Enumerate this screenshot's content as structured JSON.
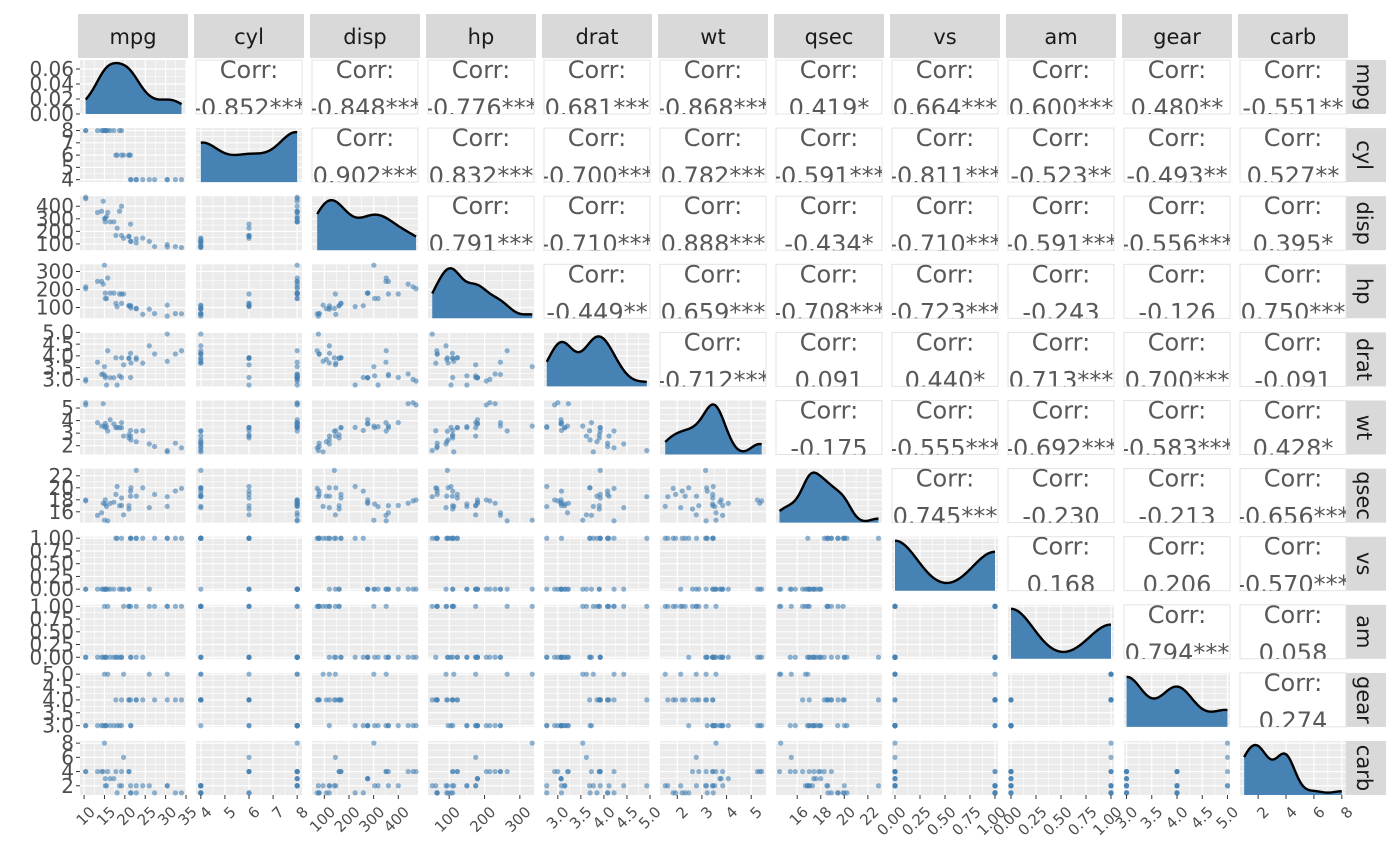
{
  "chart_data": {
    "type": "scatter",
    "variables": [
      "mpg",
      "cyl",
      "disp",
      "hp",
      "drat",
      "wt",
      "qsec",
      "vs",
      "am",
      "gear",
      "carb"
    ],
    "corr_label": "Corr:",
    "correlations": [
      {
        "row": "cyl",
        "col": "mpg",
        "text": "-0.852***"
      },
      {
        "row": "disp",
        "col": "mpg",
        "text": "-0.848***"
      },
      {
        "row": "hp",
        "col": "mpg",
        "text": "-0.776***"
      },
      {
        "row": "drat",
        "col": "mpg",
        "text": "0.681***"
      },
      {
        "row": "wt",
        "col": "mpg",
        "text": "-0.868***"
      },
      {
        "row": "qsec",
        "col": "mpg",
        "text": "0.419*"
      },
      {
        "row": "vs",
        "col": "mpg",
        "text": "0.664***"
      },
      {
        "row": "am",
        "col": "mpg",
        "text": "0.600***"
      },
      {
        "row": "gear",
        "col": "mpg",
        "text": "0.480**"
      },
      {
        "row": "carb",
        "col": "mpg",
        "text": "-0.551**"
      },
      {
        "row": "disp",
        "col": "cyl",
        "text": "0.902***"
      },
      {
        "row": "hp",
        "col": "cyl",
        "text": "0.832***"
      },
      {
        "row": "drat",
        "col": "cyl",
        "text": "-0.700***"
      },
      {
        "row": "wt",
        "col": "cyl",
        "text": "0.782***"
      },
      {
        "row": "qsec",
        "col": "cyl",
        "text": "-0.591***"
      },
      {
        "row": "vs",
        "col": "cyl",
        "text": "-0.811***"
      },
      {
        "row": "am",
        "col": "cyl",
        "text": "-0.523**"
      },
      {
        "row": "gear",
        "col": "cyl",
        "text": "-0.493**"
      },
      {
        "row": "carb",
        "col": "cyl",
        "text": "0.527**"
      },
      {
        "row": "hp",
        "col": "disp",
        "text": "0.791***"
      },
      {
        "row": "drat",
        "col": "disp",
        "text": "-0.710***"
      },
      {
        "row": "wt",
        "col": "disp",
        "text": "0.888***"
      },
      {
        "row": "qsec",
        "col": "disp",
        "text": "-0.434*"
      },
      {
        "row": "vs",
        "col": "disp",
        "text": "-0.710***"
      },
      {
        "row": "am",
        "col": "disp",
        "text": "-0.591***"
      },
      {
        "row": "gear",
        "col": "disp",
        "text": "-0.556***"
      },
      {
        "row": "carb",
        "col": "disp",
        "text": "0.395*"
      },
      {
        "row": "drat",
        "col": "hp",
        "text": "-0.449**"
      },
      {
        "row": "wt",
        "col": "hp",
        "text": "0.659***"
      },
      {
        "row": "qsec",
        "col": "hp",
        "text": "-0.708***"
      },
      {
        "row": "vs",
        "col": "hp",
        "text": "-0.723***"
      },
      {
        "row": "am",
        "col": "hp",
        "text": "-0.243"
      },
      {
        "row": "gear",
        "col": "hp",
        "text": "-0.126"
      },
      {
        "row": "carb",
        "col": "hp",
        "text": "0.750***"
      },
      {
        "row": "wt",
        "col": "drat",
        "text": "-0.712***"
      },
      {
        "row": "qsec",
        "col": "drat",
        "text": "0.091"
      },
      {
        "row": "vs",
        "col": "drat",
        "text": "0.440*"
      },
      {
        "row": "am",
        "col": "drat",
        "text": "0.713***"
      },
      {
        "row": "gear",
        "col": "drat",
        "text": "0.700***"
      },
      {
        "row": "carb",
        "col": "drat",
        "text": "-0.091"
      },
      {
        "row": "qsec",
        "col": "wt",
        "text": "-0.175"
      },
      {
        "row": "vs",
        "col": "wt",
        "text": "-0.555***"
      },
      {
        "row": "am",
        "col": "wt",
        "text": "-0.692***"
      },
      {
        "row": "gear",
        "col": "wt",
        "text": "-0.583***"
      },
      {
        "row": "carb",
        "col": "wt",
        "text": "0.428*"
      },
      {
        "row": "vs",
        "col": "qsec",
        "text": "0.745***"
      },
      {
        "row": "am",
        "col": "qsec",
        "text": "-0.230"
      },
      {
        "row": "gear",
        "col": "qsec",
        "text": "-0.213"
      },
      {
        "row": "carb",
        "col": "qsec",
        "text": "-0.656***"
      },
      {
        "row": "am",
        "col": "vs",
        "text": "0.168"
      },
      {
        "row": "gear",
        "col": "vs",
        "text": "0.206"
      },
      {
        "row": "carb",
        "col": "vs",
        "text": "-0.570***"
      },
      {
        "row": "gear",
        "col": "am",
        "text": "0.794***"
      },
      {
        "row": "carb",
        "col": "am",
        "text": "0.058"
      },
      {
        "row": "carb",
        "col": "gear",
        "text": "0.274"
      }
    ],
    "x_axis": {
      "mpg": {
        "range": [
          9,
          35
        ],
        "ticks": [
          10,
          15,
          20,
          25,
          30,
          35
        ],
        "labels": [
          "10",
          "15",
          "20",
          "25",
          "30",
          "35"
        ]
      },
      "cyl": {
        "range": [
          3.8,
          8.2
        ],
        "ticks": [
          4,
          5,
          6,
          7,
          8
        ],
        "labels": [
          "4",
          "5",
          "6",
          "7",
          "8"
        ]
      },
      "disp": {
        "range": [
          50,
          480
        ],
        "ticks": [
          100,
          200,
          300,
          400
        ],
        "labels": [
          "100",
          "200",
          "300",
          "400"
        ]
      },
      "hp": {
        "range": [
          40,
          340
        ],
        "ticks": [
          100,
          200,
          300
        ],
        "labels": [
          "100",
          "200",
          "300"
        ]
      },
      "drat": {
        "range": [
          2.7,
          5.0
        ],
        "ticks": [
          3.0,
          3.5,
          4.0,
          4.5,
          5.0
        ],
        "labels": [
          "3.0",
          "3.5",
          "4.0",
          "4.5",
          "5.0"
        ]
      },
      "wt": {
        "range": [
          1.3,
          5.6
        ],
        "ticks": [
          2,
          3,
          4,
          5
        ],
        "labels": [
          "2",
          "3",
          "4",
          "5"
        ]
      },
      "qsec": {
        "range": [
          14.2,
          23.2
        ],
        "ticks": [
          16,
          18,
          20,
          22
        ],
        "labels": [
          "16",
          "18",
          "20",
          "22"
        ]
      },
      "vs": {
        "range": [
          -0.03,
          1.03
        ],
        "ticks": [
          0,
          0.25,
          0.5,
          0.75,
          1
        ],
        "labels": [
          "0.00",
          "0.25",
          "0.50",
          "0.75",
          "1.00"
        ]
      },
      "am": {
        "range": [
          -0.03,
          1.03
        ],
        "ticks": [
          0,
          0.25,
          0.5,
          0.75,
          1
        ],
        "labels": [
          "0.00",
          "0.25",
          "0.50",
          "0.75",
          "1.00"
        ]
      },
      "gear": {
        "range": [
          2.95,
          5.05
        ],
        "ticks": [
          3.0,
          3.5,
          4.0,
          4.5,
          5.0
        ],
        "labels": [
          "3.0",
          "3.5",
          "4.0",
          "4.5",
          "5.0"
        ]
      },
      "carb": {
        "range": [
          0.7,
          8.3
        ],
        "ticks": [
          2,
          4,
          6,
          8
        ],
        "labels": [
          "2",
          "4",
          "6",
          "8"
        ]
      }
    },
    "y_axis": {
      "mpg": {
        "range": [
          0,
          0.072
        ],
        "ticks": [
          0,
          0.02,
          0.04,
          0.06
        ],
        "labels": [
          "0.00",
          "0.02",
          "0.04",
          "0.06"
        ]
      },
      "cyl": {
        "range": [
          3.8,
          8.2
        ],
        "ticks": [
          4,
          5,
          6,
          7,
          8
        ],
        "labels": [
          "4",
          "5",
          "6",
          "7",
          "8"
        ]
      },
      "disp": {
        "range": [
          50,
          480
        ],
        "ticks": [
          100,
          200,
          300,
          400
        ],
        "labels": [
          "100",
          "200",
          "300",
          "400"
        ]
      },
      "hp": {
        "range": [
          40,
          340
        ],
        "ticks": [
          100,
          200,
          300
        ],
        "labels": [
          "100",
          "200",
          "300"
        ]
      },
      "drat": {
        "range": [
          2.7,
          5.0
        ],
        "ticks": [
          3.0,
          3.5,
          4.0,
          4.5,
          5.0
        ],
        "labels": [
          "3.0",
          "3.5",
          "4.0",
          "4.5",
          "5.0"
        ]
      },
      "wt": {
        "range": [
          1.3,
          5.6
        ],
        "ticks": [
          2,
          3,
          4,
          5
        ],
        "labels": [
          "2",
          "3",
          "4",
          "5"
        ]
      },
      "qsec": {
        "range": [
          14.2,
          23.2
        ],
        "ticks": [
          16,
          18,
          20,
          22
        ],
        "labels": [
          "16",
          "18",
          "20",
          "22"
        ]
      },
      "vs": {
        "range": [
          -0.03,
          1.03
        ],
        "ticks": [
          0,
          0.25,
          0.5,
          0.75,
          1
        ],
        "labels": [
          "0.00",
          "0.25",
          "0.50",
          "0.75",
          "1.00"
        ]
      },
      "am": {
        "range": [
          -0.03,
          1.03
        ],
        "ticks": [
          0,
          0.25,
          0.5,
          0.75,
          1
        ],
        "labels": [
          "0.00",
          "0.25",
          "0.50",
          "0.75",
          "1.00"
        ]
      },
      "gear": {
        "range": [
          2.95,
          5.05
        ],
        "ticks": [
          3.0,
          3.5,
          4.0,
          4.5,
          5.0
        ],
        "labels": [
          "3.0",
          "3.5",
          "4.0",
          "4.5",
          "5.0"
        ]
      },
      "carb": {
        "range": [
          0.7,
          8.3
        ],
        "ticks": [
          2,
          4,
          6,
          8
        ],
        "labels": [
          "2",
          "4",
          "6",
          "8"
        ]
      }
    },
    "observations": [
      {
        "mpg": 21.0,
        "cyl": 6,
        "disp": 160.0,
        "hp": 110,
        "drat": 3.9,
        "wt": 2.62,
        "qsec": 16.46,
        "vs": 0,
        "am": 1,
        "gear": 4,
        "carb": 4
      },
      {
        "mpg": 21.0,
        "cyl": 6,
        "disp": 160.0,
        "hp": 110,
        "drat": 3.9,
        "wt": 2.875,
        "qsec": 17.02,
        "vs": 0,
        "am": 1,
        "gear": 4,
        "carb": 4
      },
      {
        "mpg": 22.8,
        "cyl": 4,
        "disp": 108.0,
        "hp": 93,
        "drat": 3.85,
        "wt": 2.32,
        "qsec": 18.61,
        "vs": 1,
        "am": 1,
        "gear": 4,
        "carb": 1
      },
      {
        "mpg": 21.4,
        "cyl": 6,
        "disp": 258.0,
        "hp": 110,
        "drat": 3.08,
        "wt": 3.215,
        "qsec": 19.44,
        "vs": 1,
        "am": 0,
        "gear": 3,
        "carb": 1
      },
      {
        "mpg": 18.7,
        "cyl": 8,
        "disp": 360.0,
        "hp": 175,
        "drat": 3.15,
        "wt": 3.44,
        "qsec": 17.02,
        "vs": 0,
        "am": 0,
        "gear": 3,
        "carb": 2
      },
      {
        "mpg": 18.1,
        "cyl": 6,
        "disp": 225.0,
        "hp": 105,
        "drat": 2.76,
        "wt": 3.46,
        "qsec": 20.22,
        "vs": 1,
        "am": 0,
        "gear": 3,
        "carb": 1
      },
      {
        "mpg": 14.3,
        "cyl": 8,
        "disp": 360.0,
        "hp": 245,
        "drat": 3.21,
        "wt": 3.57,
        "qsec": 15.84,
        "vs": 0,
        "am": 0,
        "gear": 3,
        "carb": 4
      },
      {
        "mpg": 24.4,
        "cyl": 4,
        "disp": 146.7,
        "hp": 62,
        "drat": 3.69,
        "wt": 3.19,
        "qsec": 20.0,
        "vs": 1,
        "am": 0,
        "gear": 4,
        "carb": 2
      },
      {
        "mpg": 22.8,
        "cyl": 4,
        "disp": 140.8,
        "hp": 95,
        "drat": 3.92,
        "wt": 3.15,
        "qsec": 22.9,
        "vs": 1,
        "am": 0,
        "gear": 4,
        "carb": 2
      },
      {
        "mpg": 19.2,
        "cyl": 6,
        "disp": 167.6,
        "hp": 123,
        "drat": 3.92,
        "wt": 3.44,
        "qsec": 18.3,
        "vs": 1,
        "am": 0,
        "gear": 4,
        "carb": 4
      },
      {
        "mpg": 17.8,
        "cyl": 6,
        "disp": 167.6,
        "hp": 123,
        "drat": 3.92,
        "wt": 3.44,
        "qsec": 18.9,
        "vs": 1,
        "am": 0,
        "gear": 4,
        "carb": 4
      },
      {
        "mpg": 16.4,
        "cyl": 8,
        "disp": 275.8,
        "hp": 180,
        "drat": 3.07,
        "wt": 4.07,
        "qsec": 17.4,
        "vs": 0,
        "am": 0,
        "gear": 3,
        "carb": 3
      },
      {
        "mpg": 17.3,
        "cyl": 8,
        "disp": 275.8,
        "hp": 180,
        "drat": 3.07,
        "wt": 3.73,
        "qsec": 17.6,
        "vs": 0,
        "am": 0,
        "gear": 3,
        "carb": 3
      },
      {
        "mpg": 15.2,
        "cyl": 8,
        "disp": 275.8,
        "hp": 180,
        "drat": 3.07,
        "wt": 3.78,
        "qsec": 18.0,
        "vs": 0,
        "am": 0,
        "gear": 3,
        "carb": 3
      },
      {
        "mpg": 10.4,
        "cyl": 8,
        "disp": 472.0,
        "hp": 205,
        "drat": 2.93,
        "wt": 5.25,
        "qsec": 17.98,
        "vs": 0,
        "am": 0,
        "gear": 3,
        "carb": 4
      },
      {
        "mpg": 10.4,
        "cyl": 8,
        "disp": 460.0,
        "hp": 215,
        "drat": 3.0,
        "wt": 5.424,
        "qsec": 17.82,
        "vs": 0,
        "am": 0,
        "gear": 3,
        "carb": 4
      },
      {
        "mpg": 14.7,
        "cyl": 8,
        "disp": 440.0,
        "hp": 230,
        "drat": 3.23,
        "wt": 5.345,
        "qsec": 17.42,
        "vs": 0,
        "am": 0,
        "gear": 3,
        "carb": 4
      },
      {
        "mpg": 32.4,
        "cyl": 4,
        "disp": 78.7,
        "hp": 66,
        "drat": 4.08,
        "wt": 2.2,
        "qsec": 19.47,
        "vs": 1,
        "am": 1,
        "gear": 4,
        "carb": 1
      },
      {
        "mpg": 30.4,
        "cyl": 4,
        "disp": 75.7,
        "hp": 52,
        "drat": 4.93,
        "wt": 1.615,
        "qsec": 18.52,
        "vs": 1,
        "am": 1,
        "gear": 4,
        "carb": 2
      },
      {
        "mpg": 33.9,
        "cyl": 4,
        "disp": 71.1,
        "hp": 65,
        "drat": 4.22,
        "wt": 1.835,
        "qsec": 19.9,
        "vs": 1,
        "am": 1,
        "gear": 4,
        "carb": 1
      },
      {
        "mpg": 21.5,
        "cyl": 4,
        "disp": 120.1,
        "hp": 97,
        "drat": 3.7,
        "wt": 2.465,
        "qsec": 20.01,
        "vs": 1,
        "am": 0,
        "gear": 3,
        "carb": 1
      },
      {
        "mpg": 15.5,
        "cyl": 8,
        "disp": 318.0,
        "hp": 150,
        "drat": 2.76,
        "wt": 3.52,
        "qsec": 16.87,
        "vs": 0,
        "am": 0,
        "gear": 3,
        "carb": 2
      },
      {
        "mpg": 15.2,
        "cyl": 8,
        "disp": 304.0,
        "hp": 150,
        "drat": 3.15,
        "wt": 3.435,
        "qsec": 17.3,
        "vs": 0,
        "am": 0,
        "gear": 3,
        "carb": 2
      },
      {
        "mpg": 13.3,
        "cyl": 8,
        "disp": 350.0,
        "hp": 245,
        "drat": 3.73,
        "wt": 3.84,
        "qsec": 15.41,
        "vs": 0,
        "am": 0,
        "gear": 3,
        "carb": 4
      },
      {
        "mpg": 19.2,
        "cyl": 8,
        "disp": 400.0,
        "hp": 175,
        "drat": 3.08,
        "wt": 3.845,
        "qsec": 17.05,
        "vs": 0,
        "am": 0,
        "gear": 3,
        "carb": 2
      },
      {
        "mpg": 27.3,
        "cyl": 4,
        "disp": 79.0,
        "hp": 66,
        "drat": 4.08,
        "wt": 1.935,
        "qsec": 18.9,
        "vs": 1,
        "am": 1,
        "gear": 4,
        "carb": 1
      },
      {
        "mpg": 26.0,
        "cyl": 4,
        "disp": 120.3,
        "hp": 91,
        "drat": 4.43,
        "wt": 2.14,
        "qsec": 16.7,
        "vs": 0,
        "am": 1,
        "gear": 5,
        "carb": 2
      },
      {
        "mpg": 30.4,
        "cyl": 4,
        "disp": 95.1,
        "hp": 113,
        "drat": 3.77,
        "wt": 1.513,
        "qsec": 16.9,
        "vs": 1,
        "am": 1,
        "gear": 5,
        "carb": 2
      },
      {
        "mpg": 15.8,
        "cyl": 8,
        "disp": 351.0,
        "hp": 264,
        "drat": 4.22,
        "wt": 3.17,
        "qsec": 14.5,
        "vs": 0,
        "am": 1,
        "gear": 5,
        "carb": 4
      },
      {
        "mpg": 19.7,
        "cyl": 6,
        "disp": 145.0,
        "hp": 175,
        "drat": 3.62,
        "wt": 2.77,
        "qsec": 15.5,
        "vs": 0,
        "am": 1,
        "gear": 5,
        "carb": 6
      },
      {
        "mpg": 15.0,
        "cyl": 8,
        "disp": 301.0,
        "hp": 335,
        "drat": 3.54,
        "wt": 3.57,
        "qsec": 14.6,
        "vs": 0,
        "am": 1,
        "gear": 5,
        "carb": 8
      },
      {
        "mpg": 21.4,
        "cyl": 4,
        "disp": 121.0,
        "hp": 109,
        "drat": 4.11,
        "wt": 2.78,
        "qsec": 18.6,
        "vs": 1,
        "am": 1,
        "gear": 4,
        "carb": 2
      }
    ],
    "colors": {
      "point": "#4682b4",
      "density_fill": "#4682b4",
      "density_line": "#000000",
      "panel_bg": "#ebebeb",
      "grid": "#ffffff",
      "strip_bg": "#d9d9d9",
      "strip_text": "#1a1a1a",
      "corr_text": "#595959",
      "tick_text": "#4d4d4d"
    },
    "grid": true
  }
}
